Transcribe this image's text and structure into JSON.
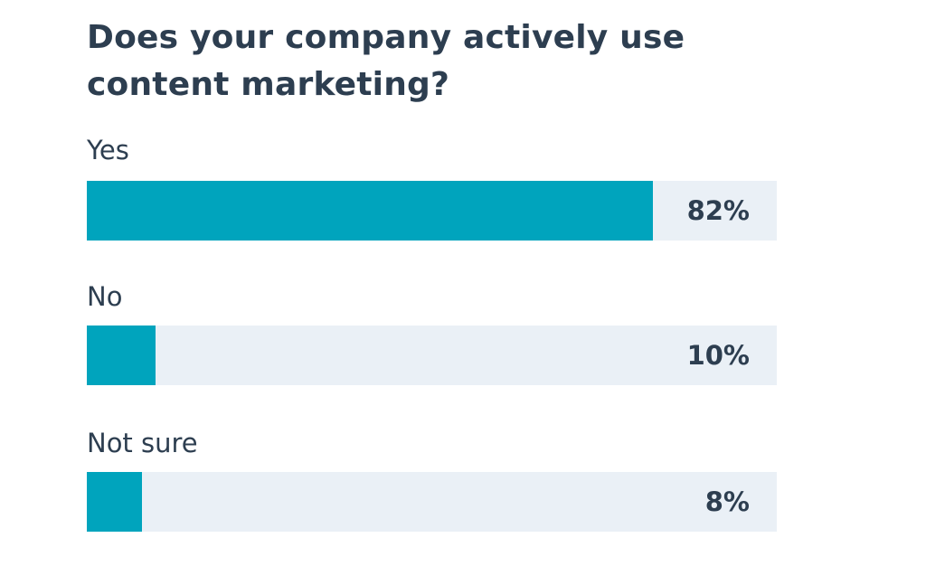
{
  "colors": {
    "bar": "#00a4bd",
    "track": "#eaf0f6",
    "text": "#2d3e50"
  },
  "chart_data": {
    "type": "bar",
    "orientation": "horizontal",
    "title": "Does your company actively use content marketing?",
    "categories": [
      "Yes",
      "No",
      "Not sure"
    ],
    "values": [
      82,
      10,
      8
    ],
    "value_labels": [
      "82%",
      "10%",
      "8%"
    ],
    "xlim": [
      0,
      100
    ],
    "grid": false
  }
}
